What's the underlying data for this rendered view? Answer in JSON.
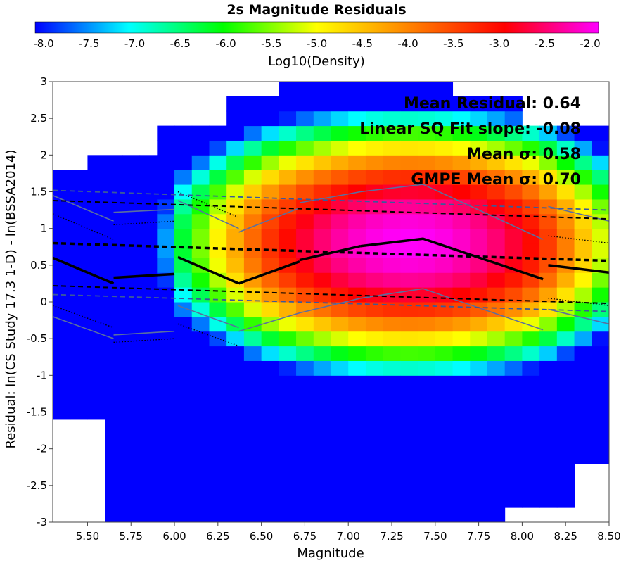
{
  "chart_data": {
    "type": "heatmap",
    "title": "2s Magnitude Residuals",
    "xlabel": "Magnitude",
    "ylabel": "Residual: ln(CS Study 17.3 1-D) - ln(BSSA2014)",
    "xlim": [
      5.3,
      8.5
    ],
    "ylim": [
      -3,
      3
    ],
    "x_ticks": [
      "5.50",
      "5.75",
      "6.00",
      "6.25",
      "6.50",
      "6.75",
      "7.00",
      "7.25",
      "7.50",
      "7.75",
      "8.00",
      "8.25",
      "8.50"
    ],
    "y_ticks": [
      "3",
      "2.5",
      "2",
      "1.5",
      "1",
      "0.5",
      "0",
      "-0.5",
      "-1",
      "-1.5",
      "-2",
      "-2.5",
      "-3"
    ],
    "colorbar": {
      "label": "Log10(Density)",
      "range": [
        -8.0,
        -2.0
      ],
      "ticks": [
        "-8.0",
        "-7.5",
        "-7.0",
        "-6.5",
        "-6.0",
        "-5.5",
        "-5.0",
        "-4.5",
        "-4.0",
        "-3.5",
        "-3.0",
        "-2.5",
        "-2.0"
      ],
      "colors": [
        "#0000ff",
        "#00ffff",
        "#00ff00",
        "#ffff00",
        "#ff8000",
        "#ff0000",
        "#ff00ff"
      ]
    },
    "bin_size": {
      "x": 0.1,
      "y": 0.2
    },
    "stats": [
      "Mean Residual: 0.64",
      "Linear SQ Fit slope: -0.08",
      "Mean σ: 0.58",
      "GMPE Mean σ: 0.70"
    ],
    "series": [
      {
        "name": "",
        "style": "solid",
        "segments": [
          {
            "x": [
              5.3,
              5.65
            ],
            "y": [
              0.6,
              0.25
            ]
          },
          {
            "x": [
              5.65,
              6.0
            ],
            "y": [
              0.33,
              0.38
            ]
          },
          {
            "x": [
              6.02,
              6.37
            ],
            "y": [
              0.61,
              0.25
            ]
          },
          {
            "x": [
              6.37,
              6.72
            ],
            "y": [
              0.25,
              0.55
            ]
          },
          {
            "x": [
              6.72,
              7.07
            ],
            "y": [
              0.57,
              0.76
            ]
          },
          {
            "x": [
              7.07,
              7.43
            ],
            "y": [
              0.76,
              0.86
            ]
          },
          {
            "x": [
              7.43,
              8.12
            ],
            "y": [
              0.86,
              0.31
            ]
          },
          {
            "x": [
              8.15,
              8.5
            ],
            "y": [
              0.5,
              0.4
            ]
          }
        ]
      },
      {
        "name": "",
        "style": "dashed",
        "segments": [
          {
            "x": [
              5.3,
              8.5
            ],
            "y": [
              0.8,
              0.56
            ]
          },
          {
            "x": [
              5.3,
              8.5
            ],
            "y": [
              1.38,
              1.13
            ]
          },
          {
            "x": [
              5.3,
              8.5
            ],
            "y": [
              0.22,
              -0.02
            ]
          }
        ]
      },
      {
        "name": "",
        "style": "dashed-blue",
        "segments": [
          {
            "x": [
              5.3,
              8.5
            ],
            "y": [
              1.52,
              1.25
            ]
          },
          {
            "x": [
              5.3,
              8.5
            ],
            "y": [
              0.1,
              -0.13
            ]
          }
        ]
      },
      {
        "name": "",
        "style": "dotted",
        "segments": [
          {
            "x": [
              5.3,
              5.65
            ],
            "y": [
              1.2,
              0.85
            ]
          },
          {
            "x": [
              5.3,
              5.65
            ],
            "y": [
              -0.05,
              -0.35
            ]
          },
          {
            "x": [
              5.65,
              6.0
            ],
            "y": [
              1.05,
              1.1
            ]
          },
          {
            "x": [
              5.65,
              6.0
            ],
            "y": [
              -0.55,
              -0.5
            ]
          },
          {
            "x": [
              6.02,
              6.37
            ],
            "y": [
              1.5,
              1.15
            ]
          },
          {
            "x": [
              6.02,
              6.37
            ],
            "y": [
              -0.3,
              -0.6
            ]
          },
          {
            "x": [
              8.15,
              8.5
            ],
            "y": [
              0.9,
              0.8
            ]
          },
          {
            "x": [
              8.15,
              8.5
            ],
            "y": [
              0.05,
              -0.05
            ]
          }
        ]
      },
      {
        "name": "",
        "style": "grey",
        "segments": [
          {
            "x": [
              5.3,
              5.65
            ],
            "y": [
              1.45,
              1.1
            ]
          },
          {
            "x": [
              5.3,
              5.65
            ],
            "y": [
              -0.2,
              -0.5
            ]
          },
          {
            "x": [
              5.65,
              6.0
            ],
            "y": [
              1.22,
              1.26
            ]
          },
          {
            "x": [
              5.65,
              6.0
            ],
            "y": [
              -0.45,
              -0.4
            ]
          },
          {
            "x": [
              6.02,
              6.37
            ],
            "y": [
              1.38,
              1.0
            ]
          },
          {
            "x": [
              6.02,
              6.37
            ],
            "y": [
              -0.05,
              -0.35
            ]
          },
          {
            "x": [
              6.37,
              6.72
            ],
            "y": [
              0.95,
              1.28
            ]
          },
          {
            "x": [
              6.37,
              6.72
            ],
            "y": [
              -0.4,
              -0.15
            ]
          },
          {
            "x": [
              6.72,
              7.07
            ],
            "y": [
              1.35,
              1.5
            ]
          },
          {
            "x": [
              6.72,
              7.07
            ],
            "y": [
              -0.15,
              0.05
            ]
          },
          {
            "x": [
              7.07,
              7.43
            ],
            "y": [
              1.5,
              1.6
            ]
          },
          {
            "x": [
              7.07,
              7.43
            ],
            "y": [
              0.05,
              0.18
            ]
          },
          {
            "x": [
              7.43,
              8.12
            ],
            "y": [
              1.6,
              0.85
            ]
          },
          {
            "x": [
              7.43,
              8.12
            ],
            "y": [
              0.18,
              -0.38
            ]
          },
          {
            "x": [
              8.15,
              8.5
            ],
            "y": [
              1.3,
              1.1
            ]
          },
          {
            "x": [
              8.15,
              8.5
            ],
            "y": [
              -0.1,
              -0.3
            ]
          }
        ]
      }
    ],
    "cells": [
      [
        "1.7",
        [
          "5.3",
          "5.4",
          "5.5"
        ]
      ],
      [
        "1.5",
        [
          "5.3",
          "5.4",
          "5.5",
          "5.6",
          "5.7",
          "5.8",
          "5.9",
          "6.0",
          "6.1",
          "6.2",
          "6.3",
          "6.4",
          "6.5",
          "6.6",
          "6.7",
          "6.8",
          "6.9",
          "7.0",
          "7.1",
          "7.2",
          "7.3",
          "7.4",
          "7.5",
          "7.6",
          "7.7",
          "7.8",
          "7.9",
          "8.0",
          "8.1",
          "8.2",
          "8.3",
          "8.4"
        ]
      ],
      [
        "1.3",
        [
          "5.3",
          "5.4",
          "5.5",
          "5.6",
          "5.7",
          "5.8",
          "5.9",
          "6.0",
          "6.1",
          "6.2",
          "6.3",
          "6.4",
          "6.5",
          "6.6",
          "6.7",
          "6.8",
          "6.9",
          "7.0",
          "7.1",
          "7.2",
          "7.3",
          "7.4",
          "7.5",
          "7.6",
          "7.7",
          "7.8",
          "7.9",
          "8.0",
          "8.1",
          "8.2",
          "8.3",
          "8.4"
        ]
      ]
    ]
  }
}
